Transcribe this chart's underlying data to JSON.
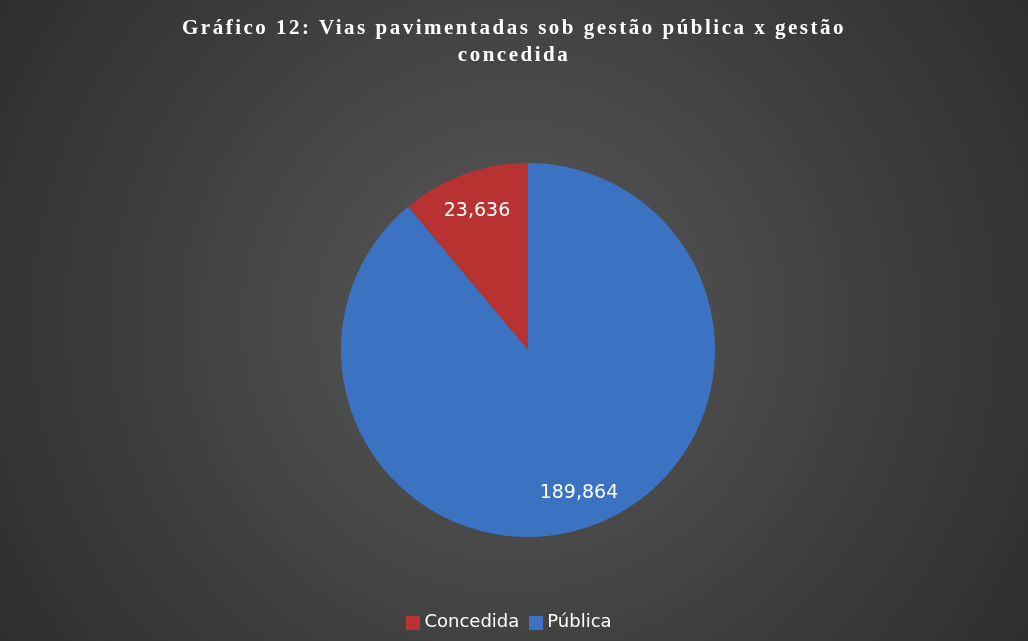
{
  "chart_data": {
    "type": "pie",
    "title": "Gráfico 12: Vias pavimentadas sob gestão pública x gestão concedida",
    "categories": [
      "Pública",
      "Concedida"
    ],
    "values": [
      189864,
      23636
    ],
    "value_labels": [
      "189,864",
      "23,636"
    ],
    "colors": [
      "#3b73c2",
      "#b93232"
    ],
    "legend": "bottom"
  }
}
